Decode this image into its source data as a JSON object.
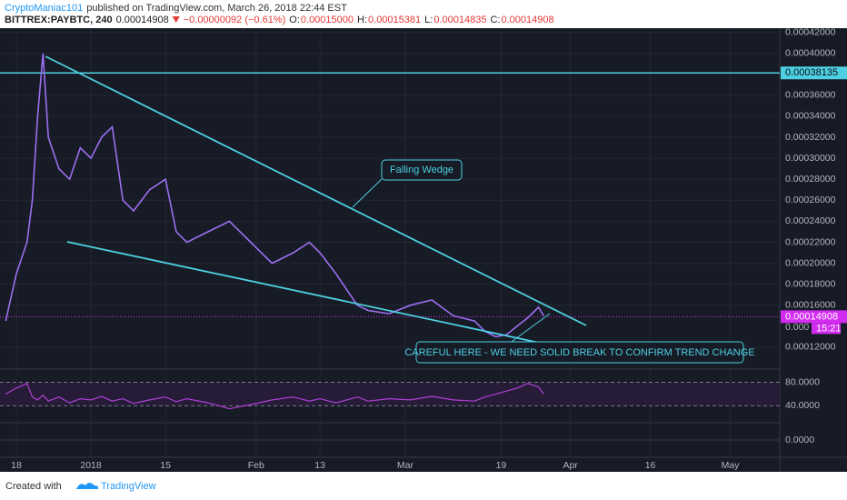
{
  "header": {
    "publisher": "CryptoManiac101",
    "published": "published on TradingView.com, March 26, 2018 22:44 EST"
  },
  "symbol": {
    "name": "BITTREX:PAYBTC, 240",
    "last": "0.00014908",
    "change": "−0.00000092 (−0.61%)",
    "ohlc": [
      {
        "label": "O:",
        "value": "0.00015000"
      },
      {
        "label": "H:",
        "value": "0.00015381"
      },
      {
        "label": "L:",
        "value": "0.00014835"
      },
      {
        "label": "C:",
        "value": "0.00014908"
      }
    ]
  },
  "chart_data": {
    "type": "line",
    "color": "#9c6ff0",
    "x": [
      -2,
      0,
      2,
      3,
      4,
      5,
      6,
      8,
      10,
      12,
      14,
      16,
      18,
      20,
      22,
      25,
      28,
      30,
      32,
      36,
      40,
      44,
      48,
      52,
      55,
      57,
      60,
      62,
      64,
      66,
      70,
      74,
      78,
      82,
      86,
      88,
      90,
      92,
      94,
      96,
      98,
      99
    ],
    "values": [
      0.000145,
      0.00019,
      0.00022,
      0.00026,
      0.00034,
      0.0004,
      0.00032,
      0.00029,
      0.00028,
      0.00031,
      0.0003,
      0.00032,
      0.00033,
      0.00026,
      0.00025,
      0.00027,
      0.00028,
      0.00023,
      0.00022,
      0.00023,
      0.00024,
      0.00022,
      0.0002,
      0.00021,
      0.00022,
      0.00021,
      0.00019,
      0.000175,
      0.00016,
      0.000155,
      0.000152,
      0.00016,
      0.000165,
      0.00015,
      0.000145,
      0.000135,
      0.00013,
      0.000132,
      0.00014,
      0.000148,
      0.000158,
      0.00015
    ],
    "xlim": [
      -3.07,
      143.3
    ],
    "ylim": [
      0.0001,
      0.000424
    ],
    "xticks": [
      {
        "value": 0,
        "label": "18"
      },
      {
        "value": 14,
        "label": "2018"
      },
      {
        "value": 28,
        "label": "15"
      },
      {
        "value": 45,
        "label": "Feb"
      },
      {
        "value": 57,
        "label": "13"
      },
      {
        "value": 73,
        "label": "Mar"
      },
      {
        "value": 91,
        "label": "19"
      },
      {
        "value": 104,
        "label": "Apr"
      },
      {
        "value": 119,
        "label": "16"
      },
      {
        "value": 134,
        "label": "May"
      }
    ],
    "yticks": [
      {
        "value": 0.00012,
        "label": "0.00012000"
      },
      {
        "value": 0.00016,
        "label": "0.00016000"
      },
      {
        "value": 0.00018,
        "label": "0.00018000"
      },
      {
        "value": 0.0002,
        "label": "0.00020000"
      },
      {
        "value": 0.00022,
        "label": "0.00022000"
      },
      {
        "value": 0.00024,
        "label": "0.00024000"
      },
      {
        "value": 0.00026,
        "label": "0.00026000"
      },
      {
        "value": 0.00028,
        "label": "0.00028000"
      },
      {
        "value": 0.0003,
        "label": "0.00030000"
      },
      {
        "value": 0.00032,
        "label": "0.00032000"
      },
      {
        "value": 0.00034,
        "label": "0.00034000"
      },
      {
        "value": 0.00036,
        "label": "0.00036000"
      },
      {
        "value": 0.0004,
        "label": "0.00040000"
      },
      {
        "value": 0.00042,
        "label": "0.00042000"
      }
    ],
    "grid": true,
    "hline": {
      "value": 0.00038135,
      "label": "0.00038135",
      "color": "#4dd0e1"
    },
    "last_price": {
      "value": 0.00014908,
      "label": "0.00014908",
      "color": "#d22cf0"
    },
    "countdown": {
      "prefix": "0.000",
      "time": "15:21"
    },
    "annotations": [
      "Falling Wedge",
      "CAREFUL HERE - WE NEED SOLID BREAK TO CONFIRM TREND CHANGE"
    ]
  },
  "rsi": {
    "color": "#b03fd6",
    "values": [
      60,
      70,
      78,
      55,
      50,
      58,
      48,
      55,
      45,
      52,
      50,
      56,
      48,
      52,
      44,
      50,
      55,
      47,
      52,
      45,
      35,
      42,
      50,
      55,
      48,
      52,
      45,
      50,
      55,
      48,
      52,
      50,
      56,
      50,
      48,
      55,
      60,
      65,
      70,
      78,
      72,
      60
    ],
    "ylim": [
      12.8,
      100.8
    ],
    "yticks": [
      {
        "value": 80,
        "label": "80.0000"
      },
      {
        "value": 40,
        "label": "40.0000"
      }
    ]
  },
  "macd": {
    "ylim": [
      -1,
      1
    ],
    "yticks": [
      {
        "value": 0,
        "label": "0.0000"
      }
    ]
  },
  "footer": {
    "created": "Created with",
    "brand": "TradingView"
  }
}
